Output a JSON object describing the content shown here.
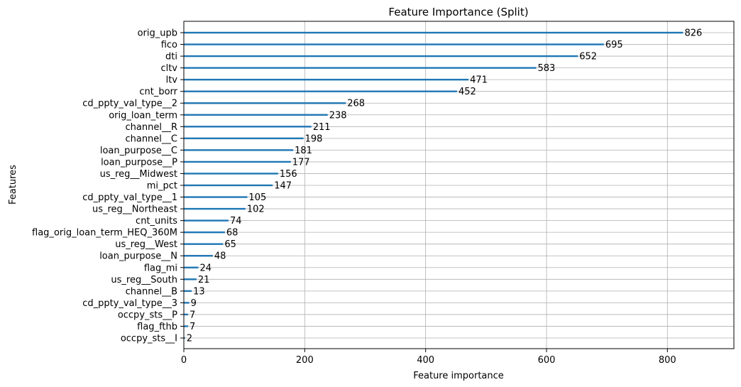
{
  "chart_data": {
    "type": "bar",
    "orientation": "horizontal",
    "title": "Feature Importance (Split)",
    "xlabel": "Feature importance",
    "ylabel": "Features",
    "xlim": [
      0,
      910
    ],
    "xticks": [
      "0",
      "200",
      "400",
      "600",
      "800"
    ],
    "grid": true,
    "bar_color": "#1f77b4",
    "categories": [
      "orig_upb",
      "fico",
      "dti",
      "cltv",
      "ltv",
      "cnt_borr",
      "cd_ppty_val_type__2",
      "orig_loan_term",
      "channel__R",
      "channel__C",
      "loan_purpose__C",
      "loan_purpose__P",
      "us_reg__Midwest",
      "mi_pct",
      "cd_ppty_val_type__1",
      "us_reg__Northeast",
      "cnt_units",
      "flag_orig_loan_term_HEQ_360M",
      "us_reg__West",
      "loan_purpose__N",
      "flag_mi",
      "us_reg__South",
      "channel__B",
      "cd_ppty_val_type__3",
      "occpy_sts__P",
      "flag_fthb",
      "occpy_sts__I"
    ],
    "values": [
      826,
      695,
      652,
      583,
      471,
      452,
      268,
      238,
      211,
      198,
      181,
      177,
      156,
      147,
      105,
      102,
      74,
      68,
      65,
      48,
      24,
      21,
      13,
      9,
      7,
      7,
      2
    ]
  }
}
